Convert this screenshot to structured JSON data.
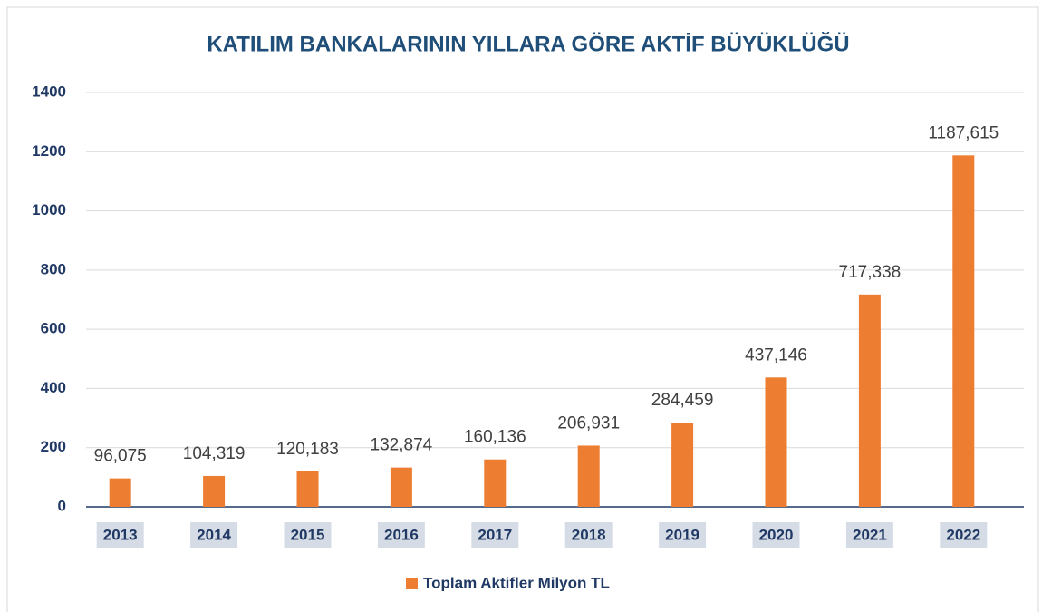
{
  "chart_data": {
    "type": "bar",
    "title": "KATILIM BANKALARININ YILLARA GÖRE AKTİF BÜYÜKLÜĞÜ",
    "categories": [
      "2013",
      "2014",
      "2015",
      "2016",
      "2017",
      "2018",
      "2019",
      "2020",
      "2021",
      "2022"
    ],
    "series": [
      {
        "name": "Toplam Aktifler Milyon TL",
        "color": "#ed7d31",
        "values": [
          96.075,
          104.319,
          120.183,
          132.874,
          160.136,
          206.931,
          284.459,
          437.146,
          717.338,
          1187.615
        ],
        "value_labels": [
          "96,075",
          "104,319",
          "120,183",
          "132,874",
          "160,136",
          "206,931",
          "284,459",
          "437,146",
          "717,338",
          "1187,615"
        ]
      }
    ],
    "ylim": [
      0,
      1400
    ],
    "yticks": [
      0,
      200,
      400,
      600,
      800,
      1000,
      1200,
      1400
    ],
    "grid": true,
    "legend": "bottom"
  }
}
